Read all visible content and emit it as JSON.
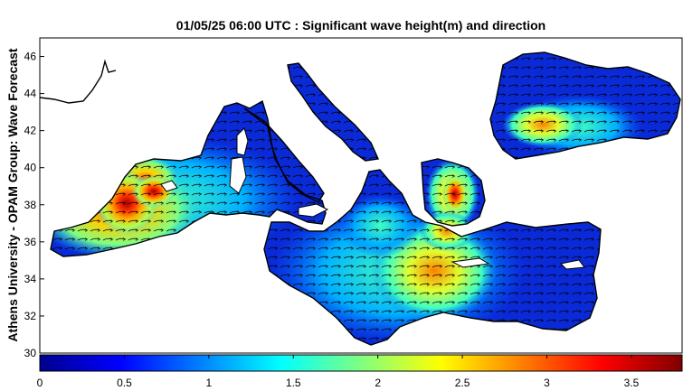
{
  "title": "01/05/25 06:00 UTC : Significant wave height(m) and direction",
  "ylabel": "Athens University - OPAM Group: Wave Forecast",
  "map": {
    "lat_ticks": [
      30,
      32,
      34,
      36,
      38,
      40,
      42,
      44,
      46
    ],
    "lat_range": [
      30,
      47
    ],
    "lon_range": [
      -6,
      42
    ]
  },
  "colorbar": {
    "ticks": [
      0,
      0.5,
      1,
      1.5,
      2,
      2.5,
      3,
      3.5
    ],
    "range": [
      0,
      3.8
    ],
    "colors": [
      "#00008f",
      "#0000ff",
      "#0080ff",
      "#00ffff",
      "#80ff80",
      "#ffff00",
      "#ff8000",
      "#ff0000",
      "#800000"
    ]
  },
  "colors": {
    "land": "#ffffff",
    "coast": "#000000",
    "sea_low": "#0a2ad8"
  }
}
